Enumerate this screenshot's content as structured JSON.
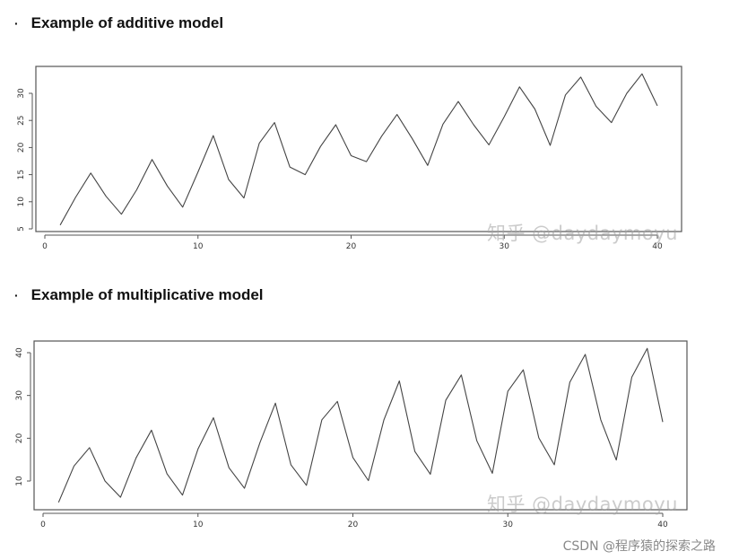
{
  "headings": {
    "bullet": "·",
    "additive": "Example of additive model",
    "multiplicative": "Example of multiplicative model"
  },
  "watermark": "知乎 @daydaymoyu",
  "footer": "CSDN @程序猿的探索之路",
  "colors": {
    "line": "#444444",
    "axis": "#555555"
  },
  "chart_data": [
    {
      "type": "line",
      "title": "",
      "xlabel": "",
      "ylabel": "",
      "xlim": [
        0,
        40
      ],
      "ylim": [
        5,
        33
      ],
      "x_ticks": [
        0,
        10,
        20,
        30,
        40
      ],
      "y_ticks": [
        5,
        10,
        15,
        20,
        25,
        30
      ],
      "x": [
        1,
        2,
        3,
        4,
        5,
        6,
        7,
        8,
        9,
        10,
        11,
        12,
        13,
        14,
        15,
        16,
        17,
        18,
        19,
        20,
        21,
        22,
        23,
        24,
        25,
        26,
        27,
        28,
        29,
        30,
        31,
        32,
        33,
        34,
        35,
        36,
        37,
        38,
        39,
        40
      ],
      "series": [
        {
          "values": [
            5.7,
            10.8,
            15.3,
            11,
            7.7,
            12.2,
            17.8,
            12.9,
            9,
            15.5,
            22.2,
            14.1,
            10.7,
            20.8,
            24.6,
            16.4,
            15,
            20.2,
            24.2,
            18.5,
            17.4,
            22.1,
            26.1,
            21.6,
            16.7,
            24.3,
            28.5,
            24.2,
            20.5,
            25.7,
            31.2,
            27.1,
            20.4,
            29.7,
            33,
            27.6,
            24.6,
            30,
            33.6,
            27.7
          ]
        }
      ]
    },
    {
      "type": "line",
      "title": "",
      "xlabel": "",
      "ylabel": "",
      "xlim": [
        0,
        40
      ],
      "ylim": [
        4,
        42
      ],
      "x_ticks": [
        0,
        10,
        20,
        30,
        40
      ],
      "y_ticks": [
        10,
        20,
        30,
        40
      ],
      "x": [
        1,
        2,
        3,
        4,
        5,
        6,
        7,
        8,
        9,
        10,
        11,
        12,
        13,
        14,
        15,
        16,
        17,
        18,
        19,
        20,
        21,
        22,
        23,
        24,
        25,
        26,
        27,
        28,
        29,
        30,
        31,
        32,
        33,
        34,
        35,
        36,
        37,
        38,
        39,
        40
      ],
      "series": [
        {
          "values": [
            5,
            13.5,
            17.8,
            10,
            6.2,
            15.4,
            21.9,
            11.7,
            6.7,
            17.5,
            24.8,
            13.1,
            8.3,
            19,
            28.2,
            13.8,
            9,
            24.3,
            28.6,
            15.5,
            10.1,
            24.3,
            33.4,
            16.9,
            11.6,
            28.9,
            34.8,
            19.4,
            11.8,
            31,
            36,
            20.1,
            13.8,
            33.1,
            39.6,
            24.3,
            14.9,
            34.3,
            41,
            23.8
          ]
        }
      ]
    }
  ]
}
